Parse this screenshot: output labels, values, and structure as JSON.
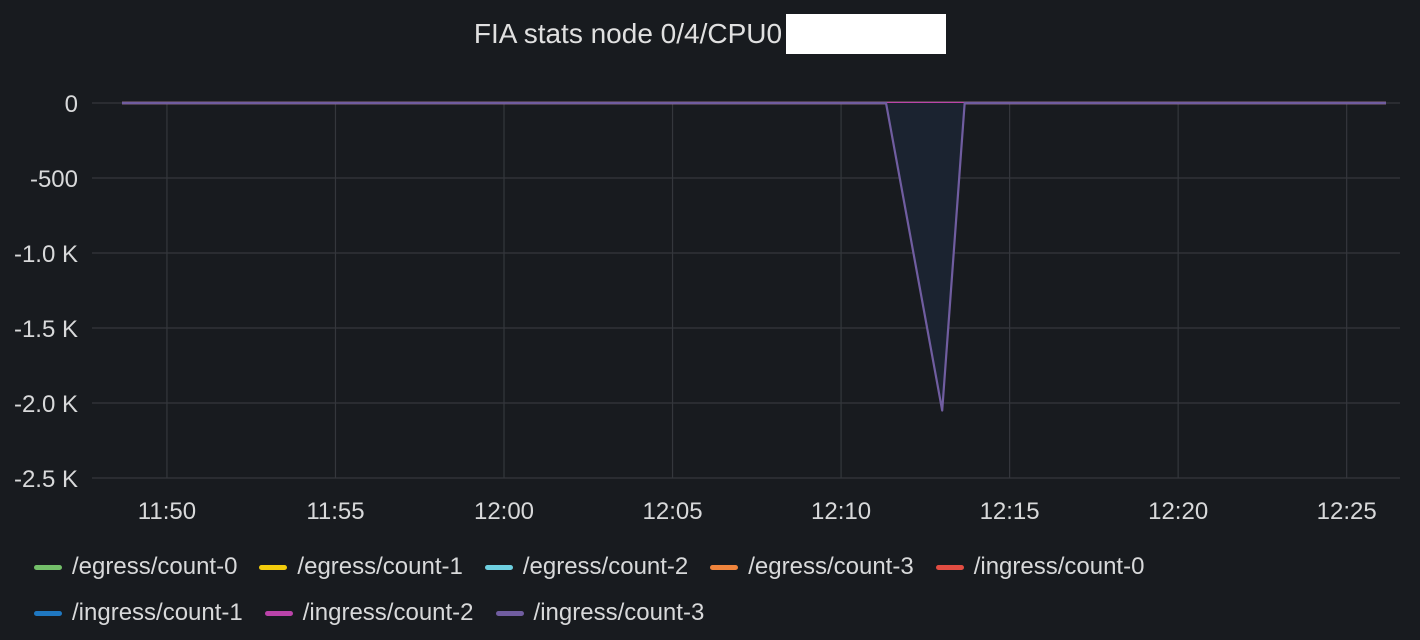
{
  "panel": {
    "title": "FIA stats node 0/4/CPU0"
  },
  "chart_data": {
    "type": "line",
    "title": "FIA stats node 0/4/CPU0",
    "xlabel": "",
    "ylabel": "",
    "x_ticks": [
      "11:50",
      "11:55",
      "12:00",
      "12:05",
      "12:10",
      "12:15",
      "12:20",
      "12:25"
    ],
    "y_ticks": [
      {
        "value": 0,
        "label": "0"
      },
      {
        "value": -500,
        "label": "-500"
      },
      {
        "value": -1000,
        "label": "-1.0 K"
      },
      {
        "value": -1500,
        "label": "-1.5 K"
      },
      {
        "value": -2000,
        "label": "-2.0 K"
      },
      {
        "value": -2500,
        "label": "-2.5 K"
      }
    ],
    "xlim": [
      "11:48:40",
      "12:26:10"
    ],
    "ylim": [
      -2500,
      0
    ],
    "grid": true,
    "legend_position": "bottom",
    "series": [
      {
        "name": "/egress/count-0",
        "color": "#73bf69",
        "x": [
          "11:48:40",
          "12:26:10"
        ],
        "values": [
          0,
          0
        ]
      },
      {
        "name": "/egress/count-1",
        "color": "#f2cc0c",
        "x": [
          "11:48:40",
          "12:26:10"
        ],
        "values": [
          0,
          0
        ]
      },
      {
        "name": "/egress/count-2",
        "color": "#6ed0e0",
        "x": [
          "11:48:40",
          "12:26:10"
        ],
        "values": [
          0,
          0
        ]
      },
      {
        "name": "/egress/count-3",
        "color": "#ef843c",
        "x": [
          "11:48:40",
          "12:26:10"
        ],
        "values": [
          0,
          0
        ]
      },
      {
        "name": "/ingress/count-0",
        "color": "#e24d42",
        "x": [
          "11:48:40",
          "12:11:20",
          "12:13:40",
          "12:26:10"
        ],
        "values": [
          0,
          0,
          0,
          0
        ]
      },
      {
        "name": "/ingress/count-1",
        "color": "#1f78c1",
        "x": [
          "11:48:40",
          "12:26:10"
        ],
        "values": [
          0,
          0
        ]
      },
      {
        "name": "/ingress/count-2",
        "color": "#ba43a9",
        "x": [
          "11:48:40",
          "12:26:10"
        ],
        "values": [
          0,
          0
        ]
      },
      {
        "name": "/ingress/count-3",
        "color": "#705da0",
        "x": [
          "11:48:40",
          "12:11:20",
          "12:13:00",
          "12:13:40",
          "12:26:10"
        ],
        "values": [
          0,
          0,
          -2050,
          0,
          0
        ]
      }
    ]
  }
}
